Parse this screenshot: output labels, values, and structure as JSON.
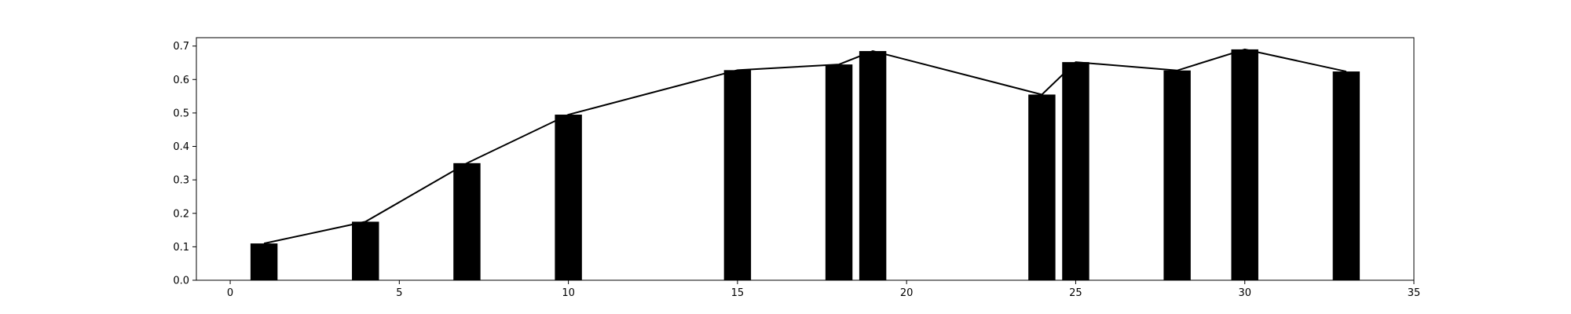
{
  "chart_data": {
    "type": "bar",
    "title": "",
    "xlabel": "",
    "ylabel": "",
    "xlim": [
      -1,
      35
    ],
    "ylim": [
      0,
      0.725
    ],
    "grid": false,
    "x_ticks": [
      0,
      5,
      10,
      15,
      20,
      25,
      30,
      35
    ],
    "y_ticks": [
      0.0,
      0.1,
      0.2,
      0.3,
      0.4,
      0.5,
      0.6,
      0.7
    ],
    "x_tick_labels": [
      "0",
      "5",
      "10",
      "15",
      "20",
      "25",
      "30",
      "35"
    ],
    "y_tick_labels": [
      "0.0",
      "0.1",
      "0.2",
      "0.3",
      "0.4",
      "0.5",
      "0.6",
      "0.7"
    ],
    "bar_width": 0.8,
    "colors": {
      "bars": "#000000",
      "line": "#000000",
      "axes": "#000000",
      "background": "#ffffff"
    },
    "series": [
      {
        "type": "bar",
        "x": [
          1,
          4,
          7,
          10,
          15,
          18,
          19,
          24,
          25,
          28,
          30,
          33
        ],
        "values": [
          0.11,
          0.175,
          0.35,
          0.495,
          0.628,
          0.645,
          0.685,
          0.555,
          0.652,
          0.627,
          0.69,
          0.624
        ]
      },
      {
        "type": "line",
        "x": [
          1,
          4,
          7,
          10,
          15,
          18,
          19,
          24,
          25,
          28,
          30,
          33
        ],
        "values": [
          0.11,
          0.175,
          0.35,
          0.495,
          0.628,
          0.645,
          0.685,
          0.555,
          0.652,
          0.627,
          0.69,
          0.624
        ]
      }
    ]
  }
}
